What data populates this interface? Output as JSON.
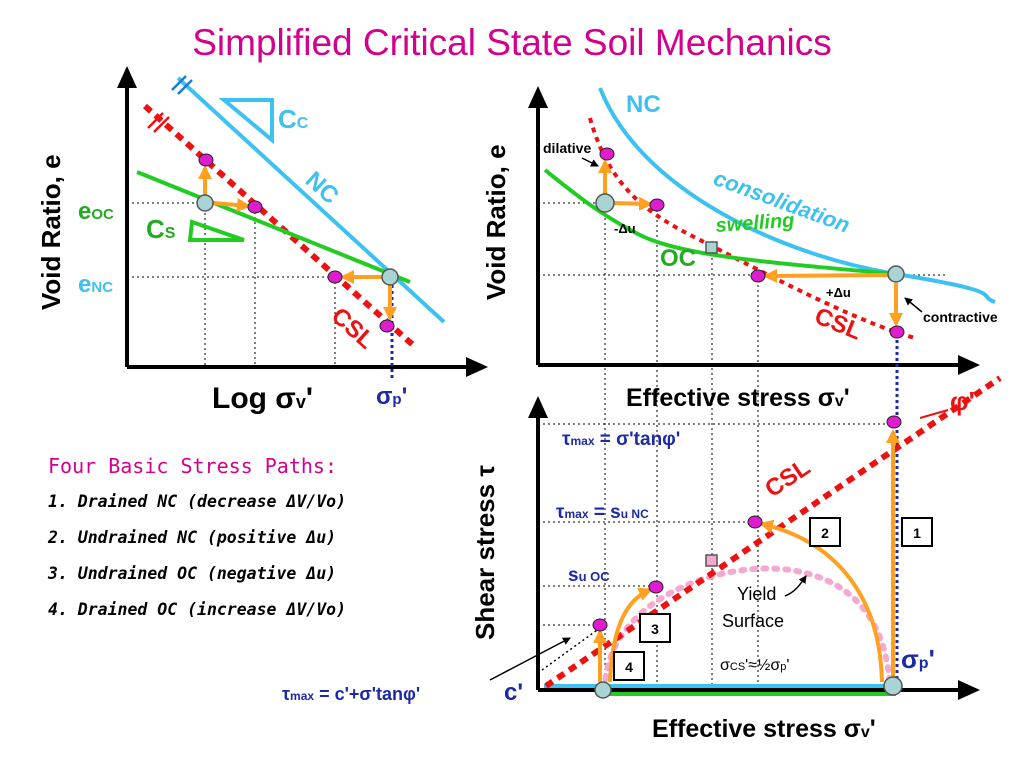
{
  "title": "Simplified Critical State Soil Mechanics",
  "left_panel": {
    "y_axis": "Void Ratio, e",
    "x_axis": "Log σv'",
    "x_axis_main": "Log σ",
    "x_axis_sub": "v",
    "x_axis_prime": "'",
    "eoc_main": "e",
    "eoc_sub": "OC",
    "enc_main": "e",
    "enc_sub": "NC",
    "cc_main": "C",
    "cc_sub": "C",
    "cs_main": "C",
    "cs_sub": "S",
    "nc_label": "NC",
    "csl_label": "CSL",
    "sigma_p_main": "σ",
    "sigma_p_sub": "p",
    "sigma_p_prime": "'"
  },
  "right_top_panel": {
    "y_axis": "Void Ratio, e",
    "nc_label": "NC",
    "consolidation": "consolidation",
    "swelling": "swelling",
    "oc_label": "OC",
    "csl_label": "CSL",
    "dilative": "dilative",
    "contractive": "contractive",
    "minus_du": "-Δu",
    "plus_du": "+Δu",
    "x_axis_main": "Effective stress σ",
    "x_axis_sub": "v",
    "x_axis_prime": "'"
  },
  "right_bottom_panel": {
    "y_axis": "Shear stress τ",
    "phi_label": "φ'",
    "csl_label": "CSL",
    "tmax1_a": "τ",
    "tmax1_sub": "max",
    "tmax1_b": " = σ'tanφ'",
    "tmax2_a": "τ",
    "tmax2_sub": "max",
    "tmax2_b": " = s",
    "tmax2_sub2": "u NC",
    "su_oc_main": "s",
    "su_oc_sub": "u OC",
    "yield_1": "Yield",
    "yield_2": "Surface",
    "sigma_cs_a": "σ",
    "sigma_cs_sub": "CS",
    "sigma_cs_b": "'≈½σ",
    "sigma_cs_sub2": "p",
    "sigma_cs_c": "'",
    "sigma_p_main": "σ",
    "sigma_p_sub": "p",
    "sigma_p_prime": "'",
    "c_prime": "c'",
    "tmax3_a": "τ",
    "tmax3_sub": "max",
    "tmax3_b": " = c'+σ'tanφ'",
    "x_axis_main": "Effective stress σ",
    "x_axis_sub": "v",
    "x_axis_prime": "'",
    "box1": "1",
    "box2": "2",
    "box3": "3",
    "box4": "4"
  },
  "stress_paths": {
    "heading": "Four Basic Stress Paths:",
    "items": [
      "1. Drained NC (decrease ΔV/Vo)",
      "2. Undrained NC (positive Δu)",
      "3. Undrained OC (negative Δu)",
      "4. Drained OC (increase ΔV/Vo)"
    ]
  },
  "colors": {
    "title": "#d3008d",
    "nc_line": "#3cc1f0",
    "csl": "#ee1111",
    "swelling": "#22cc22",
    "paths": "#ffa020",
    "point_magenta": "#e01ccf",
    "point_blue": "#a8d4d4",
    "dark_blue": "#1c2aa6",
    "yield": "#f5a8d0"
  }
}
